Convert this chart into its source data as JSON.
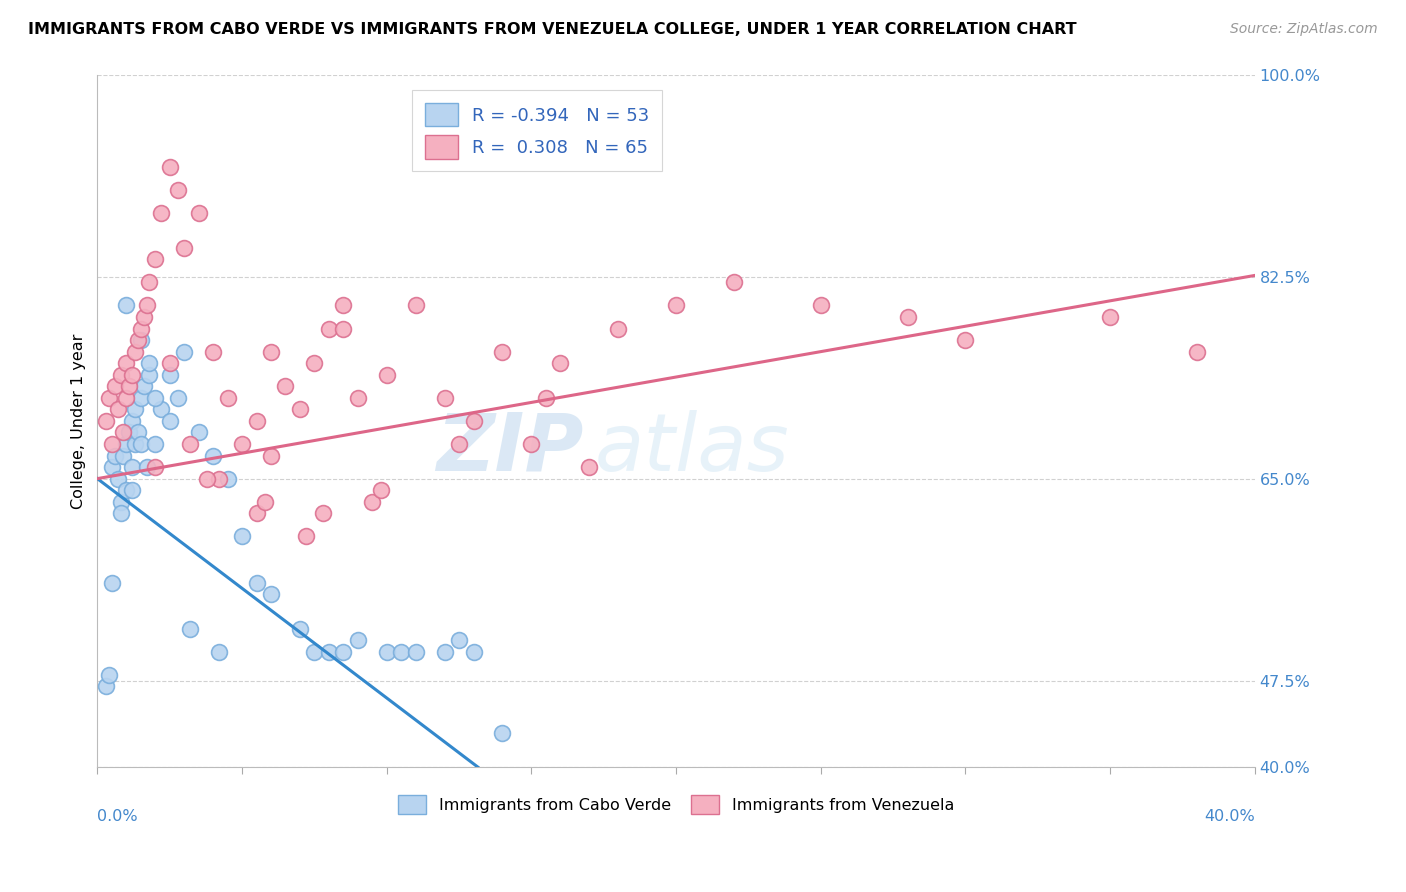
{
  "title": "IMMIGRANTS FROM CABO VERDE VS IMMIGRANTS FROM VENEZUELA COLLEGE, UNDER 1 YEAR CORRELATION CHART",
  "source": "Source: ZipAtlas.com",
  "ylabel": "College, Under 1 year",
  "xmin": 0.0,
  "xmax": 40.0,
  "ymin": 40.0,
  "ymax": 100.0,
  "cabo_verde_color": "#b8d4f0",
  "venezuela_color": "#f5b0c0",
  "cabo_verde_edge": "#7aaedc",
  "venezuela_edge": "#dc7090",
  "trend_cabo_color": "#3388cc",
  "trend_venezuela_color": "#dd6688",
  "cabo_verde_x": [
    0.3,
    0.4,
    0.5,
    0.5,
    0.6,
    0.7,
    0.8,
    0.9,
    1.0,
    1.0,
    1.1,
    1.2,
    1.2,
    1.3,
    1.3,
    1.4,
    1.5,
    1.5,
    1.6,
    1.7,
    1.8,
    2.0,
    2.2,
    2.5,
    2.8,
    3.0,
    3.5,
    4.0,
    4.5,
    5.0,
    5.5,
    6.0,
    7.0,
    7.5,
    8.0,
    8.5,
    9.0,
    10.0,
    10.5,
    11.0,
    12.0,
    12.5,
    13.0,
    14.0,
    1.0,
    1.5,
    2.0,
    2.5,
    0.8,
    1.2,
    3.2,
    4.2,
    1.8
  ],
  "cabo_verde_y": [
    47.0,
    48.0,
    56.0,
    66.0,
    67.0,
    65.0,
    63.0,
    67.0,
    68.0,
    64.0,
    69.0,
    70.0,
    66.0,
    68.0,
    71.0,
    69.0,
    68.0,
    72.0,
    73.0,
    66.0,
    74.0,
    68.0,
    71.0,
    74.0,
    72.0,
    76.0,
    69.0,
    67.0,
    65.0,
    60.0,
    56.0,
    55.0,
    52.0,
    50.0,
    50.0,
    50.0,
    51.0,
    50.0,
    50.0,
    50.0,
    50.0,
    51.0,
    50.0,
    43.0,
    80.0,
    77.0,
    72.0,
    70.0,
    62.0,
    64.0,
    52.0,
    50.0,
    75.0
  ],
  "venezuela_x": [
    0.3,
    0.4,
    0.5,
    0.6,
    0.7,
    0.8,
    0.9,
    1.0,
    1.0,
    1.1,
    1.2,
    1.3,
    1.4,
    1.5,
    1.6,
    1.7,
    1.8,
    2.0,
    2.2,
    2.5,
    2.8,
    3.0,
    3.5,
    4.0,
    4.5,
    5.0,
    5.5,
    6.0,
    6.5,
    7.0,
    7.5,
    8.0,
    8.5,
    9.0,
    10.0,
    12.0,
    14.0,
    16.0,
    18.0,
    20.0,
    22.0,
    25.0,
    28.0,
    30.0,
    35.0,
    38.0,
    2.5,
    3.2,
    4.2,
    5.5,
    7.2,
    9.5,
    12.5,
    15.5,
    6.0,
    8.5,
    11.0,
    2.0,
    3.8,
    5.8,
    7.8,
    9.8,
    13.0,
    15.0,
    17.0
  ],
  "venezuela_y": [
    70.0,
    72.0,
    68.0,
    73.0,
    71.0,
    74.0,
    69.0,
    75.0,
    72.0,
    73.0,
    74.0,
    76.0,
    77.0,
    78.0,
    79.0,
    80.0,
    82.0,
    84.0,
    88.0,
    92.0,
    90.0,
    85.0,
    88.0,
    76.0,
    72.0,
    68.0,
    70.0,
    67.0,
    73.0,
    71.0,
    75.0,
    78.0,
    80.0,
    72.0,
    74.0,
    72.0,
    76.0,
    75.0,
    78.0,
    80.0,
    82.0,
    80.0,
    79.0,
    77.0,
    79.0,
    76.0,
    75.0,
    68.0,
    65.0,
    62.0,
    60.0,
    63.0,
    68.0,
    72.0,
    76.0,
    78.0,
    80.0,
    66.0,
    65.0,
    63.0,
    62.0,
    64.0,
    70.0,
    68.0,
    66.0
  ],
  "watermark_zip": "ZIP",
  "watermark_atlas": "atlas",
  "background_color": "#ffffff",
  "grid_color": "#cccccc",
  "text_blue": "#4488cc",
  "legend_text_blue": "#3366bb"
}
